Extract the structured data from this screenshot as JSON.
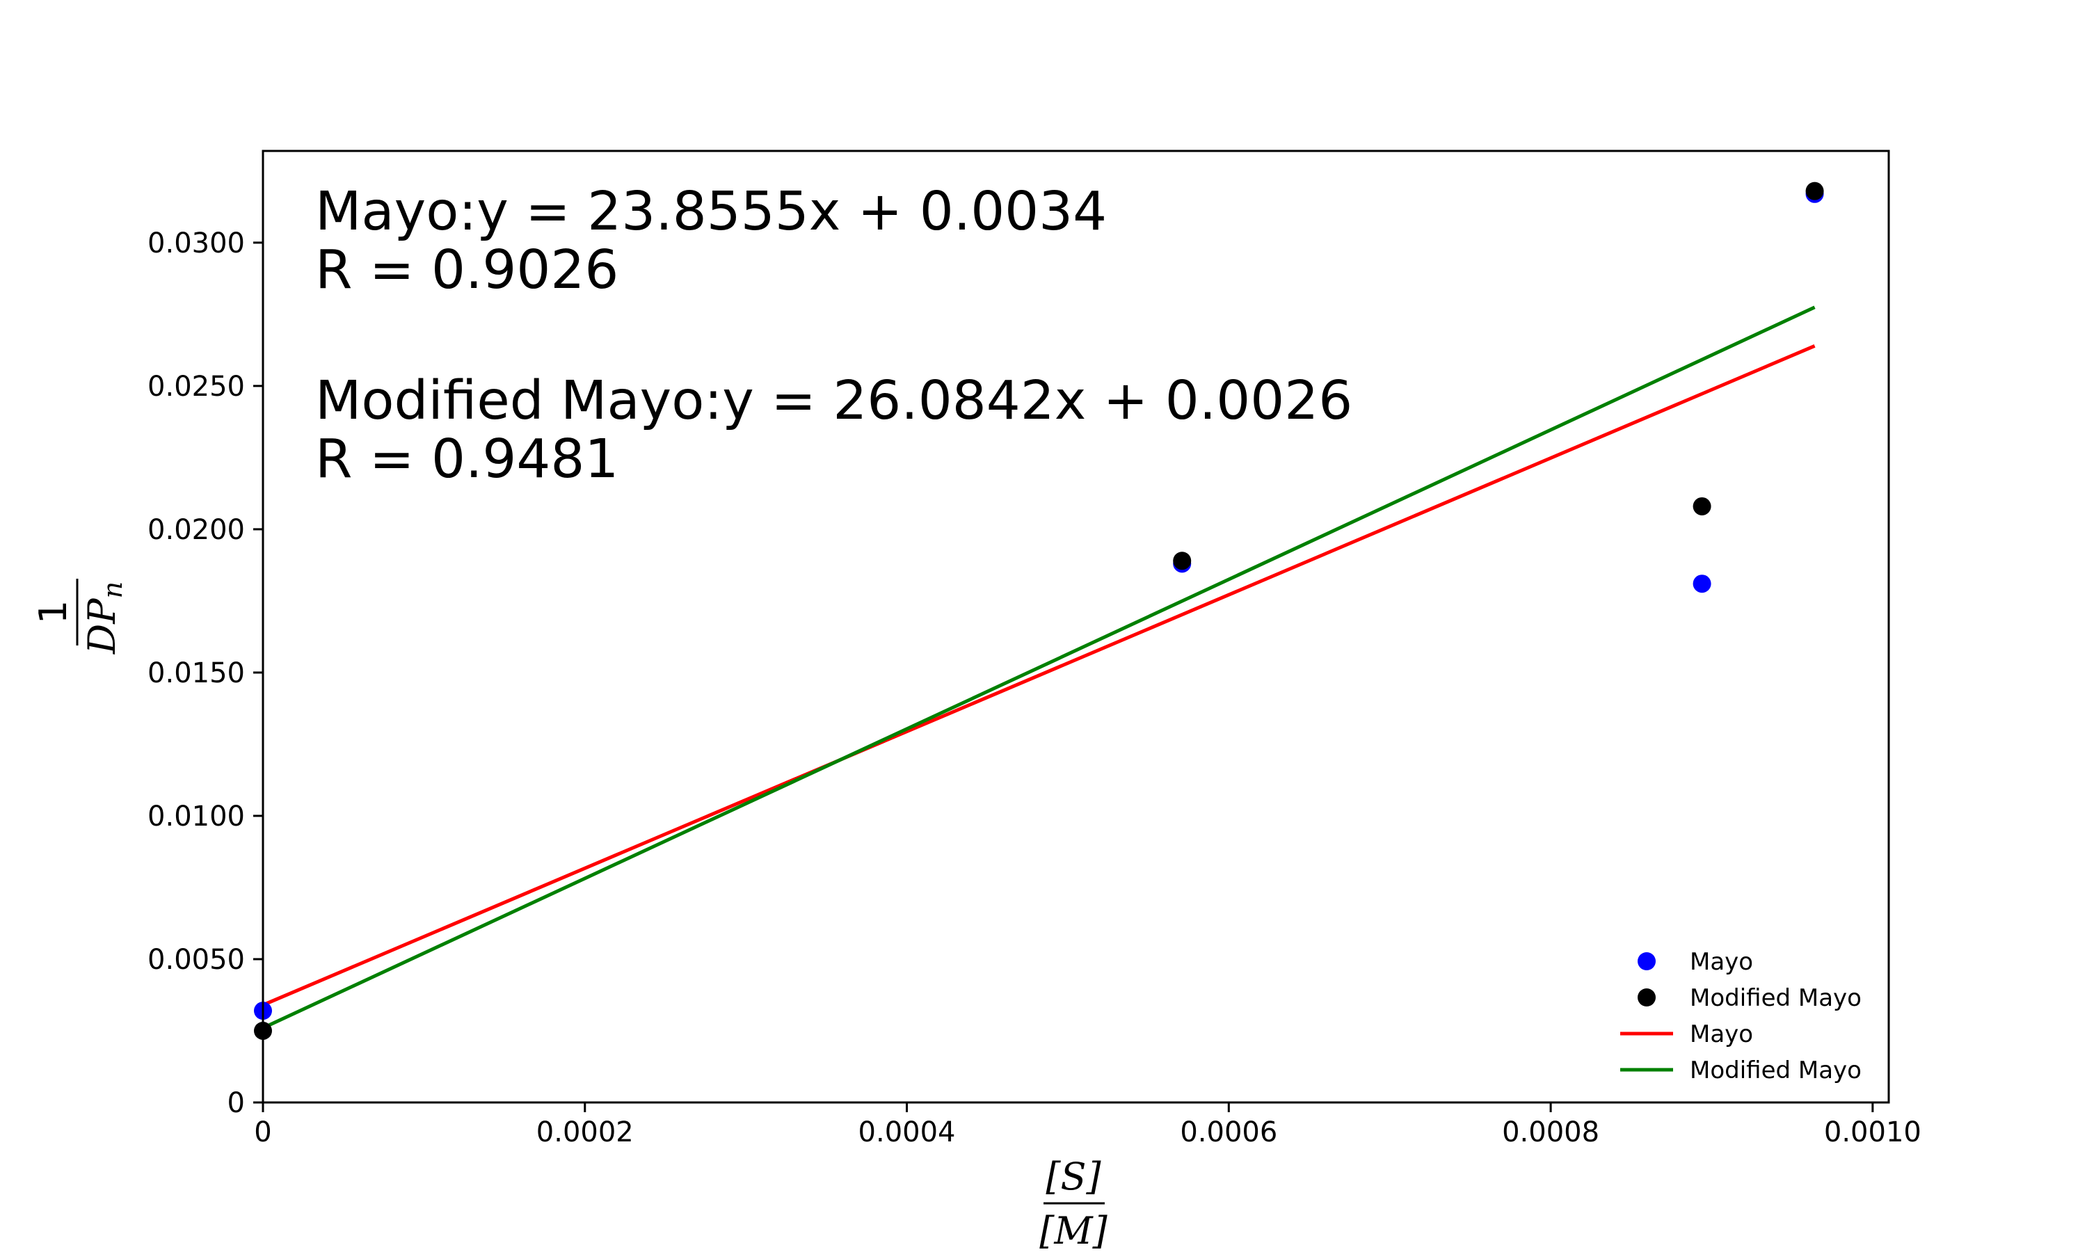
{
  "chart_data": {
    "type": "scatter",
    "xlim": [
      0,
      0.00101
    ],
    "ylim": [
      0,
      0.0332
    ],
    "x_ticks": [
      0,
      0.0002,
      0.0004,
      0.0006,
      0.0008,
      0.001
    ],
    "x_tick_labels": [
      "0",
      "0.0002",
      "0.0004",
      "0.0006",
      "0.0008",
      "0.0010"
    ],
    "y_ticks": [
      0,
      0.005,
      0.01,
      0.015,
      0.02,
      0.025,
      0.03
    ],
    "y_tick_labels": [
      "0",
      "0.0050",
      "0.0100",
      "0.0150",
      "0.0200",
      "0.0250",
      "0.0300"
    ],
    "xlabel": {
      "numerator": "[S]",
      "denominator": "[M]"
    },
    "ylabel": {
      "numerator": "1",
      "denominator": "DP",
      "subscript": "n"
    },
    "grid": false,
    "legend_position": "lower-right",
    "annotations": [
      "Mayo:y = 23.8555x + 0.0034",
      "R = 0.9026",
      "Modified Mayo:y = 26.0842x + 0.0026",
      "R = 0.9481"
    ],
    "series": [
      {
        "name": "Mayo",
        "kind": "scatter",
        "color": "#0000ff",
        "x": [
          0,
          0.000571,
          0.000894,
          0.000964
        ],
        "y": [
          0.0032,
          0.0188,
          0.0181,
          0.0317
        ]
      },
      {
        "name": "Modified Mayo",
        "kind": "scatter",
        "color": "#000000",
        "x": [
          0,
          0.000571,
          0.000894,
          0.000964
        ],
        "y": [
          0.0025,
          0.0189,
          0.0208,
          0.0318
        ]
      },
      {
        "name": "Mayo",
        "kind": "line",
        "color": "#ff0000",
        "slope": 23.8555,
        "intercept": 0.0034,
        "x": [
          0,
          0.000964
        ]
      },
      {
        "name": "Modified Mayo",
        "kind": "line",
        "color": "#008000",
        "slope": 26.0842,
        "intercept": 0.0026,
        "x": [
          0,
          0.000964
        ]
      }
    ]
  }
}
